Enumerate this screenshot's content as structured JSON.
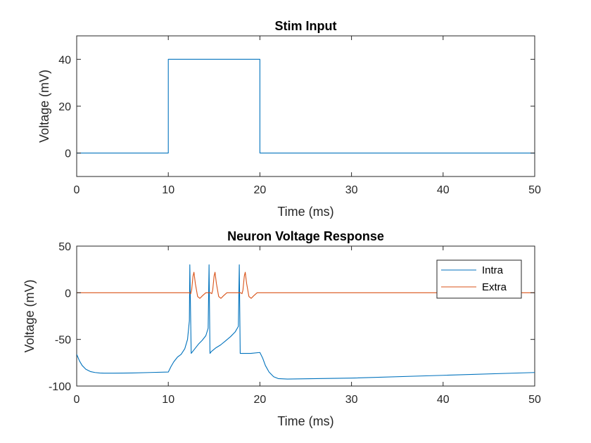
{
  "chart_data": [
    {
      "type": "line",
      "title": "Stim Input",
      "xlabel": "Time (ms)",
      "ylabel": "Voltage (mV)",
      "xlim": [
        0,
        50
      ],
      "ylim": [
        -10,
        50
      ],
      "xticks": [
        0,
        10,
        20,
        30,
        40,
        50
      ],
      "yticks": [
        0,
        20,
        40
      ],
      "grid": false,
      "series": [
        {
          "color": "#0072BD",
          "x": [
            0,
            10,
            10,
            20,
            20,
            50
          ],
          "y": [
            0,
            0,
            40,
            40,
            0,
            0
          ]
        }
      ]
    },
    {
      "type": "line",
      "title": "Neuron Voltage Response",
      "xlabel": "Time (ms)",
      "ylabel": "Voltage (mV)",
      "xlim": [
        0,
        50
      ],
      "ylim": [
        -100,
        50
      ],
      "xticks": [
        0,
        10,
        20,
        30,
        40,
        50
      ],
      "yticks": [
        -100,
        -50,
        0,
        50
      ],
      "grid": false,
      "legend": "top-right",
      "series": [
        {
          "name": "Intra",
          "color": "#0072BD",
          "x": [
            0,
            0.3,
            0.6,
            1.0,
            1.5,
            2.0,
            2.5,
            3.0,
            4.0,
            6.0,
            8.0,
            10.0,
            10.3,
            10.6,
            11.0,
            11.4,
            11.8,
            12.1,
            12.3,
            12.35,
            12.5,
            12.9,
            13.3,
            13.7,
            14.1,
            14.35,
            14.45,
            14.55,
            14.7,
            15.2,
            15.7,
            16.2,
            16.8,
            17.3,
            17.65,
            17.75,
            17.85,
            18.0,
            19.0,
            20.0,
            20.3,
            20.6,
            21.0,
            21.5,
            22.0,
            23.0,
            30.0,
            40.0,
            50.0
          ],
          "y": [
            -66,
            -73,
            -78,
            -82,
            -84.5,
            -85.5,
            -86,
            -86.2,
            -86.2,
            -86,
            -85.5,
            -85,
            -79,
            -74,
            -69,
            -66,
            -60,
            -50,
            -30,
            30,
            -65,
            -60,
            -55,
            -51,
            -46,
            -38,
            30,
            -65,
            -63,
            -59,
            -56,
            -52,
            -47,
            -42,
            -36,
            30,
            -65,
            -65,
            -65,
            -64,
            -70,
            -78,
            -85,
            -90,
            -92,
            -92.5,
            -91.5,
            -88.5,
            -85.5
          ]
        },
        {
          "name": "Extra",
          "color": "#D95319",
          "x": [
            0,
            12.3,
            12.45,
            12.55,
            12.7,
            12.8,
            12.95,
            13.2,
            13.45,
            13.75,
            14.1,
            14.6,
            14.75,
            14.85,
            15.0,
            15.1,
            15.25,
            15.5,
            15.75,
            16.05,
            16.4,
            17.9,
            18.05,
            18.15,
            18.3,
            18.4,
            18.55,
            18.8,
            19.05,
            19.35,
            19.7,
            50
          ],
          "y": [
            0,
            0,
            -1,
            3,
            18,
            22,
            10,
            -4,
            -6,
            -3,
            0,
            0,
            -1,
            3,
            18,
            22,
            10,
            -4,
            -6,
            -3,
            0,
            0,
            -1,
            3,
            18,
            22,
            10,
            -4,
            -6,
            -3,
            0,
            0
          ]
        }
      ]
    }
  ]
}
